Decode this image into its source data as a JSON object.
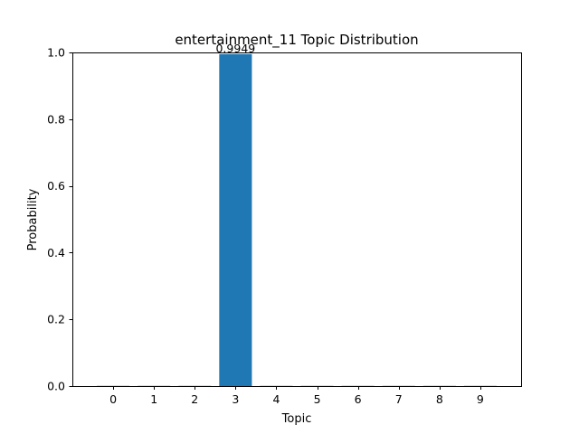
{
  "chart_data": {
    "type": "bar",
    "title": "entertainment_11 Topic Distribution",
    "xlabel": "Topic",
    "ylabel": "Probability",
    "categories": [
      "0",
      "1",
      "2",
      "3",
      "4",
      "5",
      "6",
      "7",
      "8",
      "9"
    ],
    "values": [
      0.0006,
      0.0006,
      0.0006,
      0.9949,
      0.0006,
      0.0006,
      0.0006,
      0.0006,
      0.0006,
      0.0006
    ],
    "data_labels": [
      {
        "category": "3",
        "text": "0.9949"
      }
    ],
    "ylim": [
      0,
      1.0
    ],
    "yticks": [
      "0.0",
      "0.2",
      "0.4",
      "0.6",
      "0.8",
      "1.0"
    ],
    "bar_color": "#1f77b4",
    "grid": false,
    "legend": "none"
  }
}
